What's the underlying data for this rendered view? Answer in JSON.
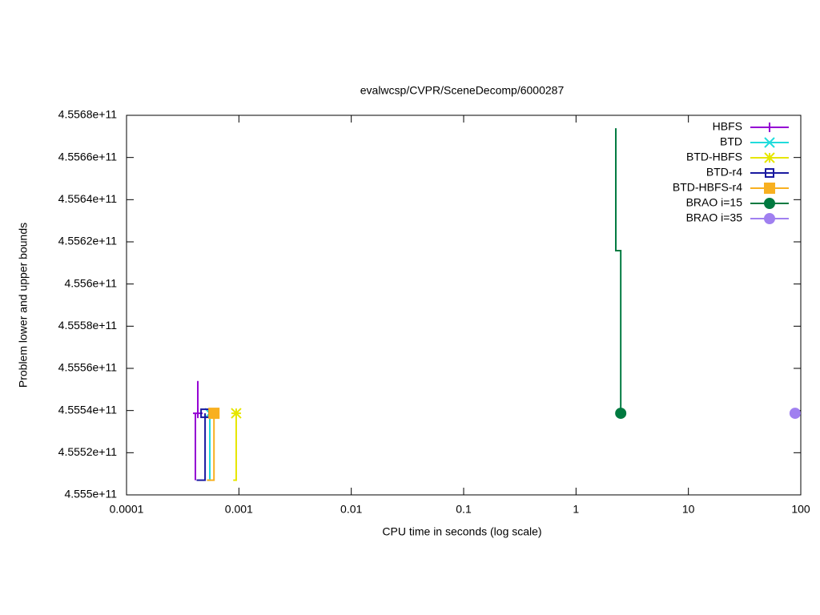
{
  "chart_data": {
    "type": "line",
    "title": "evalwcsp/CVPR/SceneDecomp/6000287",
    "x_label": "CPU time in seconds (log scale)",
    "y_label": "Problem lower and upper bounds",
    "xlog": true,
    "xlim": [
      0.0001,
      100
    ],
    "xticks": [
      0.0001,
      0.001,
      0.01,
      0.1,
      1,
      10,
      100
    ],
    "ylim": [
      455500000000,
      455680000000
    ],
    "yticks": [
      {
        "value": 455500000000,
        "label": "4.555e+11"
      },
      {
        "value": 455520000000,
        "label": "4.5552e+11"
      },
      {
        "value": 455540000000,
        "label": "4.5554e+11"
      },
      {
        "value": 455560000000,
        "label": "4.5556e+11"
      },
      {
        "value": 455580000000,
        "label": "4.5558e+11"
      },
      {
        "value": 455600000000,
        "label": "4.556e+11"
      },
      {
        "value": 455620000000,
        "label": "4.5562e+11"
      },
      {
        "value": 455640000000,
        "label": "4.5564e+11"
      },
      {
        "value": 455660000000,
        "label": "4.5566e+11"
      },
      {
        "value": 455680000000,
        "label": "4.5568e+11"
      }
    ],
    "legend": "top-right",
    "series": [
      {
        "name": "HBFS",
        "color": "#9400d3",
        "marker": "plus",
        "x": [
          0.00041,
          0.00041,
          null,
          0.000431,
          0.000431
        ],
        "values": [
          455507000000,
          455538700000,
          null,
          455554000000,
          455538700000
        ]
      },
      {
        "name": "BTD",
        "color": "#20dcdc",
        "marker": "cross",
        "x": [
          0.00052,
          0.000551,
          0.000551
        ],
        "values": [
          455507000000,
          455507000000,
          455538700000
        ]
      },
      {
        "name": "BTD-HBFS",
        "color": "#e6e600",
        "marker": "star",
        "x": [
          0.00089,
          0.000946,
          0.000946
        ],
        "values": [
          455507000000,
          455507000000,
          455538700000
        ]
      },
      {
        "name": "BTD-r4",
        "color": "#1a1aa0",
        "marker": "open-square",
        "x": [
          0.00042,
          0.0005,
          0.0005
        ],
        "values": [
          455507000000,
          455507000000,
          455538700000
        ]
      },
      {
        "name": "BTD-HBFS-r4",
        "color": "#f8b020",
        "marker": "square",
        "x": [
          0.00052,
          0.0006,
          0.0006
        ],
        "values": [
          455507000000,
          455507000000,
          455538700000
        ]
      },
      {
        "name": "BRAO i=15",
        "color": "#007a40",
        "marker": "ring",
        "x": [
          2.26,
          2.26,
          2.5,
          2.5
        ],
        "values": [
          455673900000,
          455615800000,
          455615800000,
          455538700000
        ]
      },
      {
        "name": "BRAO i=35",
        "color": "#a080f0",
        "marker": "circle",
        "x": [
          89
        ],
        "values": [
          455538700000
        ]
      }
    ]
  }
}
